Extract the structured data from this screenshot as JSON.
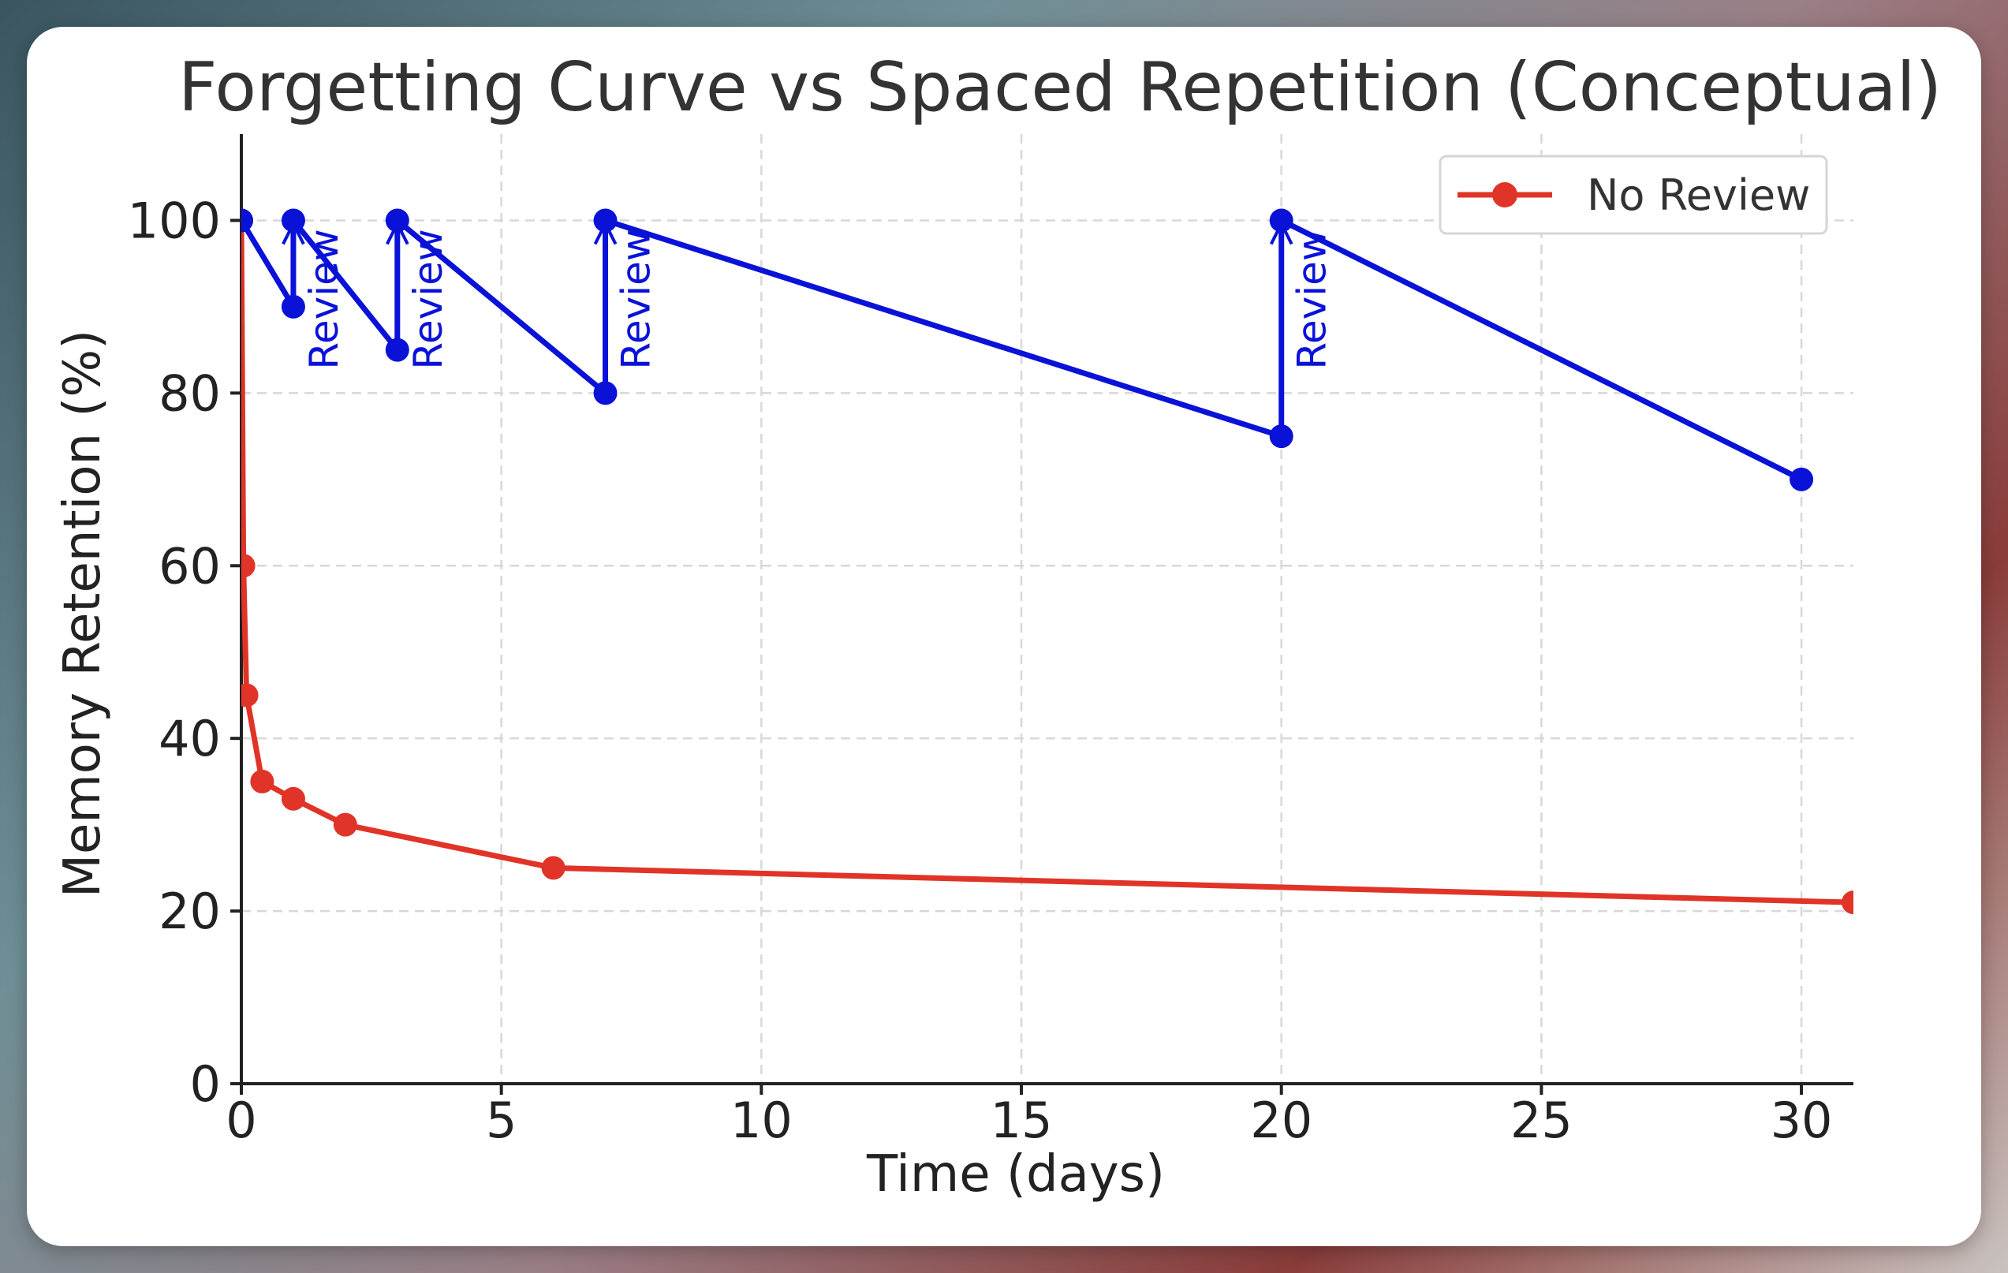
{
  "chart_data": {
    "type": "line",
    "title": "Forgetting Curve vs Spaced Repetition (Conceptual)",
    "xlabel": "Time (days)",
    "ylabel": "Memory Retention (%)",
    "xlim": [
      0,
      31
    ],
    "ylim": [
      0,
      110
    ],
    "xticks": [
      0,
      5,
      10,
      15,
      20,
      25,
      30
    ],
    "yticks": [
      0,
      20,
      40,
      60,
      80,
      100
    ],
    "grid": true,
    "legend_position": "top-right",
    "series": [
      {
        "name": "No Review",
        "color": "#e03428",
        "in_legend": true,
        "points": [
          {
            "x": 0,
            "y": 100
          },
          {
            "x": 0.04,
            "y": 60
          },
          {
            "x": 0.1,
            "y": 45
          },
          {
            "x": 0.4,
            "y": 35
          },
          {
            "x": 1,
            "y": 33
          },
          {
            "x": 2,
            "y": 30
          },
          {
            "x": 6,
            "y": 25
          },
          {
            "x": 31,
            "y": 21
          }
        ]
      },
      {
        "color": "#0a12d8",
        "in_legend": false,
        "points": [
          {
            "x": 0,
            "y": 100
          },
          {
            "x": 1,
            "y": 90
          },
          {
            "x": 1,
            "y": 100
          },
          {
            "x": 3,
            "y": 85
          },
          {
            "x": 3,
            "y": 100
          },
          {
            "x": 7,
            "y": 80
          },
          {
            "x": 7,
            "y": 100
          },
          {
            "x": 20,
            "y": 75
          },
          {
            "x": 20,
            "y": 100
          },
          {
            "x": 30,
            "y": 70
          }
        ]
      }
    ],
    "annotations": [
      {
        "text": "Review",
        "x": 1,
        "y_from": 90,
        "y_to": 100
      },
      {
        "text": "Review",
        "x": 3,
        "y_from": 85,
        "y_to": 100
      },
      {
        "text": "Review",
        "x": 7,
        "y_from": 80,
        "y_to": 100
      },
      {
        "text": "Review",
        "x": 20,
        "y_from": 75,
        "y_to": 100
      }
    ]
  }
}
